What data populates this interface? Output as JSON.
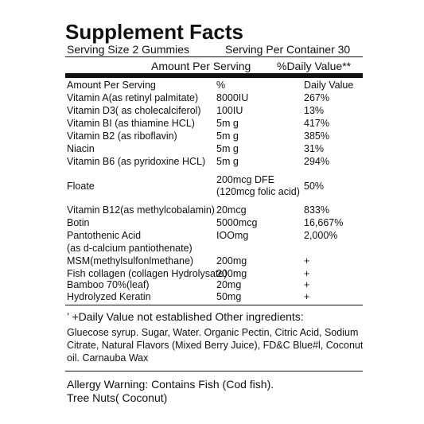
{
  "header": {
    "title": "Supplement Facts",
    "serving_size": "Serving Size 2 Gummies",
    "servings_per_container": "Serving Per Container 30",
    "amount_heading": "Amount Per Serving",
    "dv_heading": "%Daily Value**"
  },
  "table": {
    "rows": [
      {
        "name": "Amount Per Serving",
        "amount": "%",
        "dv": "Daily Value"
      },
      {
        "name": "Vitamin A(as retinyl palmitate)",
        "amount": "8000IU",
        "dv": "267%"
      },
      {
        "name": "Vitamin D3( as cholecalciferol)",
        "amount": "100IU",
        "dv": "13%"
      },
      {
        "name": "Vitamin BI (as thiamine HCL)",
        "amount": "5m g",
        "dv": "417%"
      },
      {
        "name": "Vitamin B2 (as riboflavin)",
        "amount": "5m g",
        "dv": "385%"
      },
      {
        "name": "Niacin",
        "amount": "5m g",
        "dv": "31%"
      },
      {
        "name": "Vitamin B6 (as pyridoxine HCL)",
        "amount": "5m g",
        "dv": "294%"
      },
      {
        "name": "Floate",
        "amount": [
          "200mcg DFE",
          "(120mcg folic acid)"
        ],
        "dv": "50%"
      },
      {
        "name": "Vitamin B12(as methylcobalamin)",
        "amount": "20mcg",
        "dv": "833%"
      },
      {
        "name": "Botin",
        "amount": "5000mcg",
        "dv": "16,667%"
      },
      {
        "name": "Pantothenic Acid",
        "amount": "IOOmg",
        "dv": "2,000%"
      },
      {
        "name": "(as d-calcium pantiothenate)"
      },
      {
        "name": "MSM(methylsulfonlmethane)",
        "amount": "200mg",
        "dv": "+"
      },
      {
        "name": "Fish collagen (collagen Hydrolysate)",
        "amount": "200mg",
        "dv": "+"
      },
      {
        "name": "Bamboo 70%(leaf)",
        "amount": "20mg",
        "dv": "+"
      },
      {
        "name": "Hydrolyzed Keratin",
        "amount": "50mg",
        "dv": "+"
      }
    ]
  },
  "footnote": "’ +Daily Value not established Other ingredients:",
  "ingredients": [
    "Gluecose syrup. Sugar, Water. Organic Pectin, Citric Acid, Sodium",
    "Citrate, Natural Flavors (Mixed Berry Juice), FD&C Blue#l,  Coconut",
    "oil. Carnauba Wax"
  ],
  "allergy": [
    "Allergy Warning: Contains Fish (Cod fish).",
    "Tree Nuts( Coconut)"
  ]
}
